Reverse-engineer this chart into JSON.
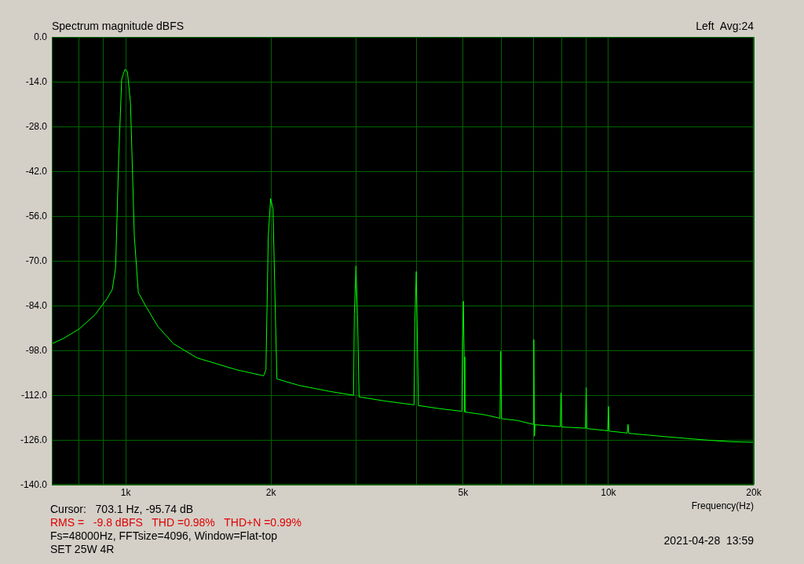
{
  "chart_data": {
    "type": "line",
    "title": "Spectrum magnitude dBFS",
    "subtitle": "Left  Avg:24",
    "xlabel": "Frequency(Hz)",
    "annotations": [
      "Cursor:   703.1 Hz, -95.74 dB",
      "RMS =   -9.8 dBFS   THD =0.98%   THD+N =0.99%",
      "Fs=48000Hz, FFTsize=4096, Window=Flat-top",
      "SET 25W 4R",
      "2021-04-28  13:59"
    ],
    "log": "x",
    "grid": true,
    "legend": false,
    "marker": "none",
    "line_style": "solid",
    "xlim": [
      703,
      20000
    ],
    "xticks": [
      {
        "value": 800,
        "label": null
      },
      {
        "value": 900,
        "label": null
      },
      {
        "value": 1000,
        "label": "1k"
      },
      {
        "value": 2000,
        "label": "2k"
      },
      {
        "value": 3000,
        "label": null
      },
      {
        "value": 4000,
        "label": null
      },
      {
        "value": 5000,
        "label": "5k"
      },
      {
        "value": 6000,
        "label": null
      },
      {
        "value": 7000,
        "label": null
      },
      {
        "value": 8000,
        "label": null
      },
      {
        "value": 9000,
        "label": null
      },
      {
        "value": 10000,
        "label": "10k"
      },
      {
        "value": 20000,
        "label": "20k"
      }
    ],
    "ylim": [
      -140,
      0
    ],
    "yticks": [
      {
        "value": 0,
        "label": "0.0"
      },
      {
        "value": -14,
        "label": "-14.0"
      },
      {
        "value": -28,
        "label": "-28.0"
      },
      {
        "value": -42,
        "label": "-42.0"
      },
      {
        "value": -56,
        "label": "-56.0"
      },
      {
        "value": -70,
        "label": "-70.0"
      },
      {
        "value": -84,
        "label": "-84.0"
      },
      {
        "value": -98,
        "label": "-98.0"
      },
      {
        "value": -112,
        "label": "-112.0"
      },
      {
        "value": -126,
        "label": "-126.0"
      },
      {
        "value": -140,
        "label": "-140.0"
      }
    ],
    "series": [
      {
        "color": "#00ff00",
        "x": [
          703,
          744,
          802,
          864,
          914,
          938,
          953,
          967,
          981,
          996,
          1008,
          1023,
          1042,
          1062,
          1102,
          1166,
          1256,
          1405,
          1694,
          1930,
          1952,
          1974,
          1996,
          2019,
          2042,
          2057,
          2284,
          2650,
          2965,
          2976,
          2999,
          3021,
          3044,
          3446,
          3956,
          3970,
          3999,
          4025,
          4040,
          4475,
          4968,
          4985,
          5006,
          5025,
          5040,
          5590,
          5960,
          5983,
          6005,
          6492,
          6985,
          7004,
          7025,
          7045,
          7948,
          7974,
          7998,
          8960,
          8993,
          9020,
          9963,
          10000,
          10030,
          10935,
          10980,
          11020,
          13250,
          15940,
          17830,
          19960
        ],
        "values": [
          -95.9,
          -94.2,
          -91.2,
          -86.8,
          -81.9,
          -78.9,
          -72.1,
          -37.8,
          -13.2,
          -10.1,
          -10.8,
          -20.6,
          -62.3,
          -79.9,
          -84.3,
          -90.5,
          -95.9,
          -100.3,
          -104,
          -105.9,
          -104,
          -62.3,
          -50.5,
          -53.7,
          -86.8,
          -106.9,
          -108.9,
          -110.8,
          -112,
          -86.8,
          -71.6,
          -86.8,
          -112.5,
          -113.8,
          -115,
          -90,
          -73.3,
          -100,
          -115.2,
          -116.2,
          -117,
          -95,
          -82.6,
          -100,
          -117.2,
          -118.2,
          -119.2,
          -98.3,
          -119.3,
          -119.9,
          -121.1,
          -94.6,
          -124.8,
          -121.2,
          -121.8,
          -111.3,
          -121.9,
          -122.3,
          -109.6,
          -122.4,
          -123.1,
          -115.5,
          -123.2,
          -123.8,
          -121.1,
          -123.9,
          -125,
          -126,
          -126.5,
          -126.7
        ]
      }
    ]
  }
}
